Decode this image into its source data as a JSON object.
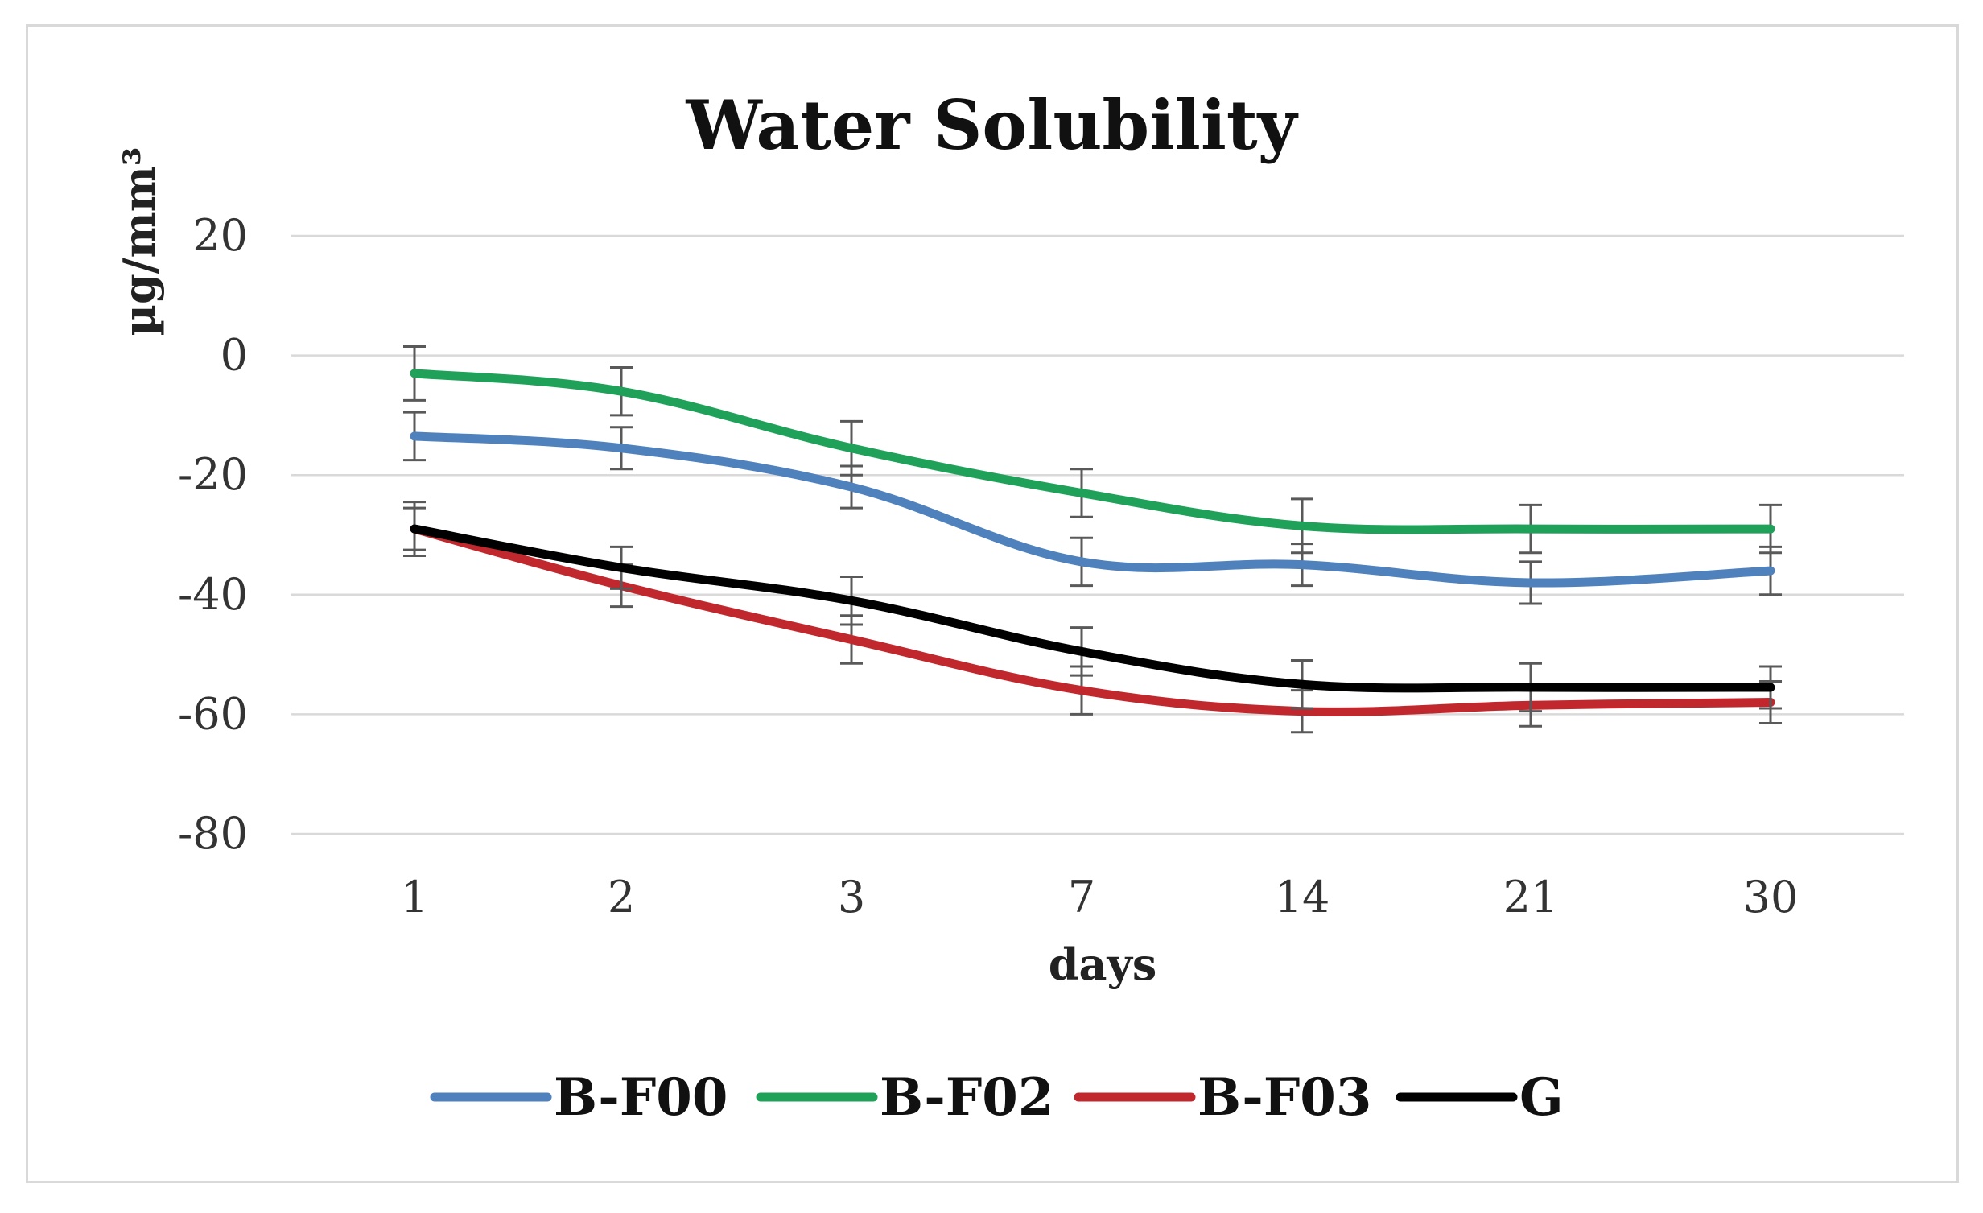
{
  "chart_data": {
    "type": "line",
    "title": "Water Solubility",
    "xlabel": "days",
    "ylabel": "µg/mm³",
    "categories": [
      "1",
      "2",
      "3",
      "7",
      "14",
      "21",
      "30"
    ],
    "ylim": [
      -80,
      20
    ],
    "yticks": [
      20,
      0,
      -20,
      -40,
      -60,
      -80
    ],
    "grid": true,
    "legend_position": "bottom",
    "series": [
      {
        "name": "B-F00",
        "color": "#4f81bd",
        "values": [
          -13.5,
          -15.5,
          -22,
          -34.5,
          -35,
          -38,
          -36
        ],
        "errors": [
          4,
          3.5,
          3.5,
          4,
          3.5,
          3.5,
          4
        ]
      },
      {
        "name": "B-F02",
        "color": "#1fa15a",
        "values": [
          -3,
          -6,
          -15.5,
          -23,
          -28.5,
          -29,
          -29
        ],
        "errors": [
          4.5,
          4,
          4.5,
          4,
          4.5,
          4,
          4
        ]
      },
      {
        "name": "B-F03",
        "color": "#c0282d",
        "values": [
          -29,
          -38.5,
          -47.5,
          -56,
          -59.5,
          -58.5,
          -58
        ],
        "errors": [
          3.5,
          3.5,
          4,
          4,
          3.5,
          3.5,
          3.5
        ]
      },
      {
        "name": "G",
        "color": "#000000",
        "values": [
          -29,
          -35.5,
          -41,
          -49.5,
          -55,
          -55.5,
          -55.5
        ],
        "errors": [
          4.5,
          3.5,
          4,
          4,
          4,
          4,
          3.5
        ]
      }
    ]
  }
}
